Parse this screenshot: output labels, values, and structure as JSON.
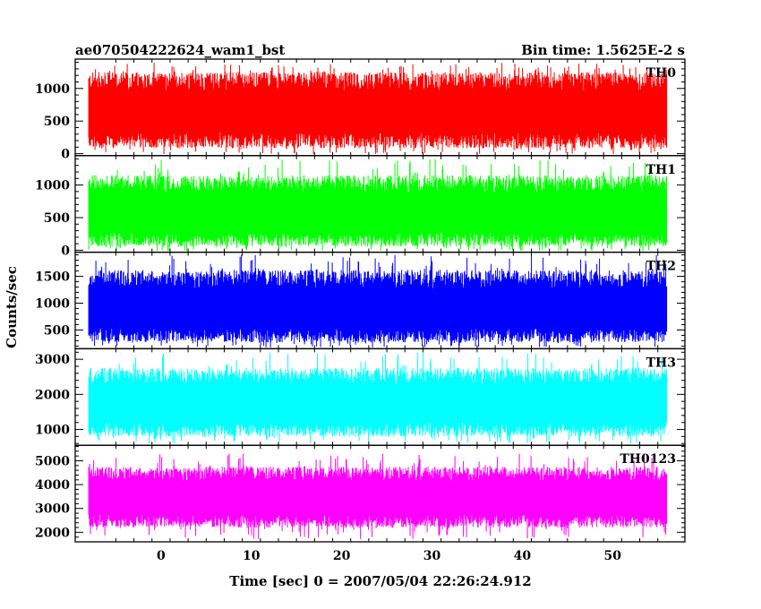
{
  "header": {
    "title": "ae070504222624_wam1_bst",
    "bin_time": "Bin time: 1.5625E-2 s"
  },
  "axes": {
    "xlabel": "Time [sec] 0 = 2007/05/04 22:26:24.912",
    "ylabel": "Counts/sec"
  },
  "chart_data": {
    "type": "line",
    "title": "ae070504222624_wam1_bst",
    "subtitle": "Bin time: 1.5625E-2 s",
    "xlabel": "Time [sec] 0 = 2007/05/04 22:26:24.912",
    "ylabel": "Counts/sec",
    "xlim": [
      -9.5,
      58
    ],
    "x_range": [
      -8,
      56
    ],
    "bin_time": 0.015625,
    "x_ticks": [
      0,
      10,
      20,
      30,
      40,
      50
    ],
    "panels": [
      {
        "name": "TH0",
        "color": "#ff0000",
        "ylim": [
          -30,
          1450
        ],
        "yticks": [
          0,
          500,
          1000
        ],
        "mean": 620,
        "low": 80,
        "high": 1250,
        "peak": 1400
      },
      {
        "name": "TH1",
        "color": "#00ff00",
        "ylim": [
          -30,
          1450
        ],
        "yticks": [
          0,
          500,
          1000
        ],
        "mean": 550,
        "low": 60,
        "high": 1150,
        "peak": 1400
      },
      {
        "name": "TH2",
        "color": "#0000ff",
        "ylim": [
          150,
          1950
        ],
        "yticks": [
          500,
          1000,
          1500
        ],
        "mean": 850,
        "low": 270,
        "high": 1620,
        "peak": 1900
      },
      {
        "name": "TH3",
        "color": "#00ffff",
        "ylim": [
          550,
          3300
        ],
        "yticks": [
          1000,
          2000,
          3000
        ],
        "mean": 1720,
        "low": 800,
        "high": 2750,
        "peak": 3200
      },
      {
        "name": "TH0123",
        "color": "#ff00ff",
        "ylim": [
          1600,
          5650
        ],
        "yticks": [
          2000,
          3000,
          4000,
          5000
        ],
        "mean": 3400,
        "low": 2200,
        "high": 4750,
        "peak": 5300
      }
    ]
  }
}
